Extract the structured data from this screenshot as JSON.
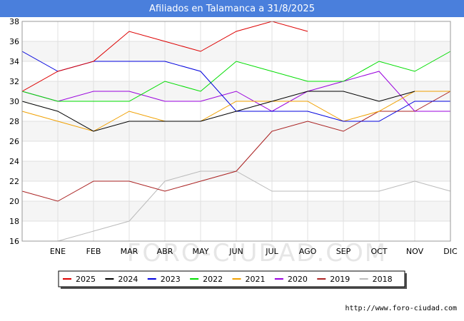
{
  "header": {
    "title": "Afiliados en Talamanca a 31/8/2025"
  },
  "footer": {
    "url": "http://www.foro-ciudad.com"
  },
  "watermark": "FORO-CIUDAD.COM",
  "chart_data": {
    "type": "line",
    "title": "Afiliados en Talamanca a 31/8/2025",
    "xlabel": "",
    "ylabel": "",
    "categories": [
      "",
      "ENE",
      "FEB",
      "MAR",
      "ABR",
      "MAY",
      "JUN",
      "JUL",
      "AGO",
      "SEP",
      "OCT",
      "NOV",
      "DIC"
    ],
    "ylim": [
      16,
      38
    ],
    "yticks": [
      16,
      18,
      20,
      22,
      24,
      26,
      28,
      30,
      32,
      34,
      36,
      38
    ],
    "grid": true,
    "legend_position": "bottom",
    "series": [
      {
        "name": "2025",
        "color": "#dd0000",
        "values": [
          31,
          33,
          34,
          37,
          36,
          35,
          37,
          38,
          37,
          null,
          null,
          null,
          null
        ]
      },
      {
        "name": "2024",
        "color": "#000000",
        "values": [
          30,
          29,
          27,
          28,
          28,
          28,
          29,
          30,
          31,
          31,
          30,
          31,
          null
        ]
      },
      {
        "name": "2023",
        "color": "#0000dd",
        "values": [
          35,
          33,
          34,
          34,
          34,
          33,
          29,
          29,
          29,
          28,
          28,
          30,
          30
        ]
      },
      {
        "name": "2022",
        "color": "#00dd00",
        "values": [
          31,
          30,
          30,
          30,
          32,
          31,
          34,
          33,
          32,
          32,
          34,
          33,
          35
        ]
      },
      {
        "name": "2021",
        "color": "#f0a000",
        "values": [
          29,
          28,
          27,
          29,
          28,
          28,
          30,
          30,
          30,
          28,
          29,
          31,
          31
        ]
      },
      {
        "name": "2020",
        "color": "#9900dd",
        "values": [
          31,
          30,
          31,
          31,
          30,
          30,
          31,
          29,
          31,
          32,
          33,
          29,
          29
        ]
      },
      {
        "name": "2019",
        "color": "#aa2222",
        "values": [
          21,
          20,
          22,
          22,
          21,
          22,
          23,
          27,
          28,
          27,
          29,
          29,
          31
        ]
      },
      {
        "name": "2018",
        "color": "#bbbbbb",
        "values": [
          null,
          16,
          17,
          18,
          22,
          23,
          23,
          21,
          21,
          21,
          21,
          22,
          21
        ]
      }
    ]
  }
}
